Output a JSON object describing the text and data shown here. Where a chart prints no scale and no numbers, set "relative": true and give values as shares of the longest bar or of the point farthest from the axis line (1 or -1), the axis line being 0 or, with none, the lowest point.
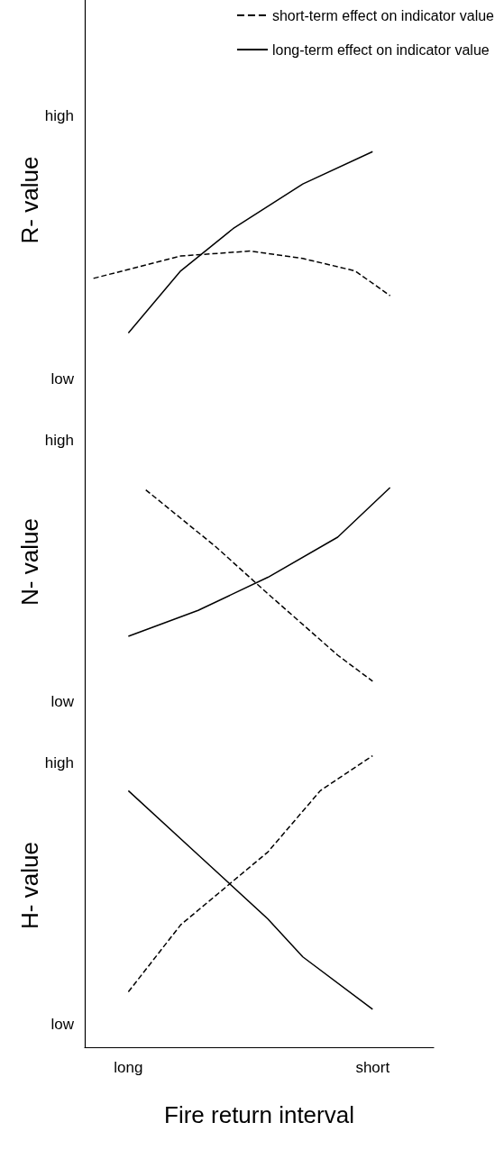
{
  "chart_data": [
    {
      "type": "line",
      "ylabel": "R- value",
      "relative": true,
      "annotations": [
        "high",
        "low"
      ],
      "categories": [
        null,
        null,
        null,
        null,
        null,
        null,
        null,
        null,
        null,
        null,
        null,
        null,
        null,
        null,
        null,
        null,
        null,
        null,
        null,
        null
      ],
      "tick_labels": false,
      "grid": false,
      "marker": "none",
      "legend": "top right",
      "series": [
        {
          "name": "short-term effect on indicator value",
          "color": "#000000",
          "line_style": "dashed",
          "values": [
            0.49,
            null,
            null,
            null,
            null,
            0.58,
            null,
            null,
            null,
            0.6,
            null,
            null,
            0.57,
            null,
            null,
            0.52,
            null,
            0.42,
            null,
            null
          ]
        },
        {
          "name": "long-term effect on indicator value",
          "color": "#000000",
          "line_style": "solid",
          "values": [
            null,
            null,
            0.27,
            null,
            null,
            0.52,
            null,
            null,
            0.69,
            null,
            null,
            null,
            0.87,
            null,
            null,
            null,
            1,
            null,
            null,
            null
          ]
        }
      ]
    },
    {
      "type": "line",
      "ylabel": "N- value",
      "relative": true,
      "annotations": [
        "high",
        "low"
      ],
      "categories": [
        null,
        null,
        null,
        null,
        null,
        null,
        null,
        null,
        null,
        null,
        null,
        null,
        null,
        null,
        null,
        null,
        null,
        null,
        null,
        null
      ],
      "tick_labels": false,
      "grid": false,
      "marker": "none",
      "legend": false,
      "series": [
        {
          "color": "#000000",
          "line_style": "dashed",
          "values": [
            null,
            null,
            null,
            0.99,
            null,
            null,
            null,
            0.75,
            null,
            null,
            0.55,
            null,
            null,
            null,
            0.29,
            null,
            0.18,
            null,
            null,
            null
          ]
        },
        {
          "color": "#000000",
          "line_style": "solid",
          "values": [
            null,
            null,
            0.37,
            null,
            null,
            null,
            0.48,
            null,
            null,
            null,
            0.62,
            null,
            null,
            null,
            0.79,
            null,
            null,
            1,
            null,
            null
          ]
        }
      ]
    },
    {
      "type": "line",
      "ylabel": "H- value",
      "xlabel": "Fire return interval",
      "relative": true,
      "annotations": [
        "high",
        "low"
      ],
      "categories": [
        null,
        null,
        "long",
        null,
        null,
        null,
        null,
        null,
        null,
        null,
        null,
        null,
        null,
        null,
        null,
        null,
        "short",
        null,
        null,
        null
      ],
      "tick_labels": "x",
      "grid": false,
      "marker": "none",
      "legend": false,
      "series": [
        {
          "color": "#000000",
          "line_style": "dashed",
          "values": [
            null,
            null,
            0.19,
            null,
            null,
            0.42,
            null,
            null,
            null,
            null,
            0.67,
            null,
            null,
            0.88,
            null,
            null,
            1,
            null,
            null,
            null
          ]
        },
        {
          "color": "#000000",
          "line_style": "solid",
          "values": [
            null,
            null,
            0.88,
            null,
            null,
            null,
            0.66,
            null,
            null,
            null,
            0.44,
            null,
            0.31,
            null,
            null,
            null,
            0.13,
            null,
            null,
            null
          ]
        }
      ]
    }
  ]
}
